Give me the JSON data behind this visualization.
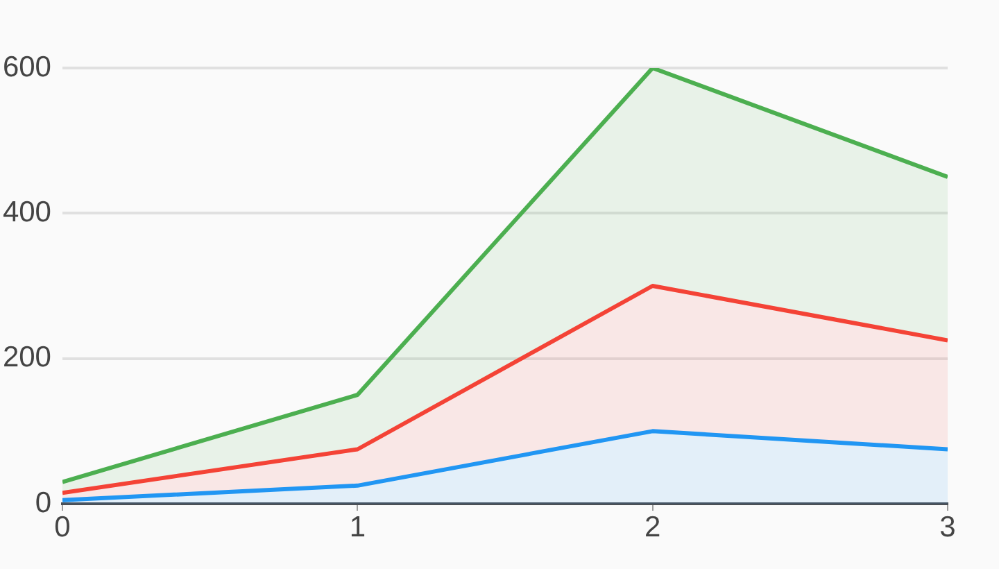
{
  "chart_data": {
    "type": "area",
    "stacked": true,
    "grid": "y",
    "x": [
      0,
      1,
      2,
      3
    ],
    "xlim": [
      0,
      3
    ],
    "xticks": [
      0,
      1,
      2,
      3
    ],
    "ylim": [
      0,
      600
    ],
    "yticks": [
      0,
      200,
      400,
      600
    ],
    "series": [
      {
        "color": "#2196f3",
        "values": [
          5,
          25,
          100,
          75
        ]
      },
      {
        "color": "#f44336",
        "values": [
          10,
          50,
          200,
          150
        ]
      },
      {
        "color": "#4caf50",
        "values": [
          15,
          75,
          300,
          225
        ]
      }
    ]
  }
}
